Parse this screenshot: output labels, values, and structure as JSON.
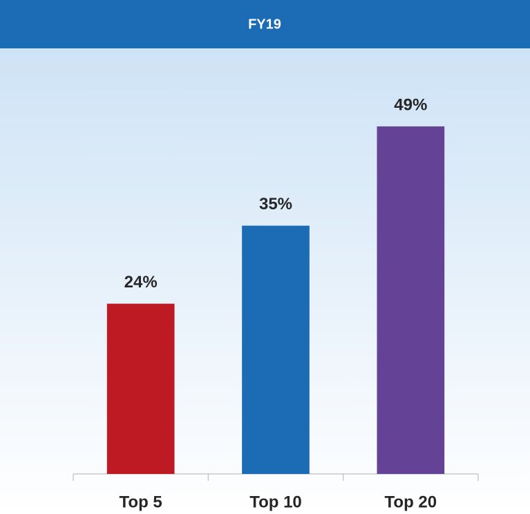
{
  "chart_data": {
    "type": "bar",
    "title": "FY19",
    "categories": [
      "Top 5",
      "Top 10",
      "Top 20"
    ],
    "values": [
      24,
      35,
      49
    ],
    "value_labels": [
      "24%",
      "35%",
      "49%"
    ],
    "colors": [
      "#be1a24",
      "#1b6bb5",
      "#644296"
    ],
    "ylim": [
      0,
      60
    ]
  }
}
